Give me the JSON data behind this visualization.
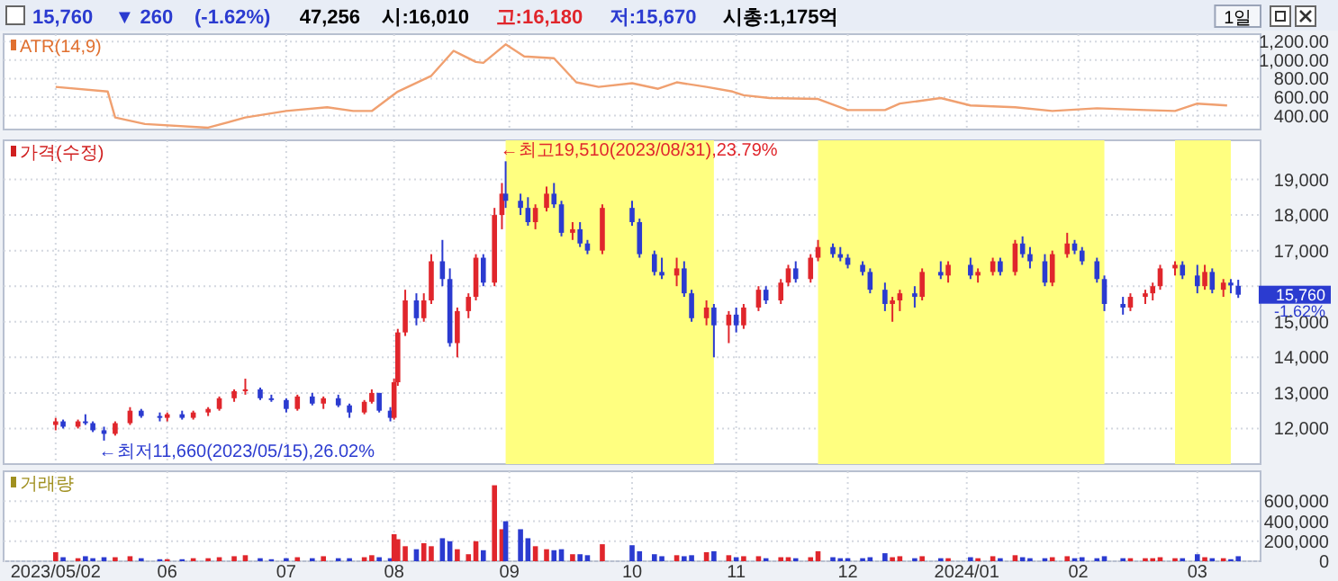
{
  "chart_data": [
    {
      "type": "other",
      "annotations": [
        "15,760",
        "▼ 260",
        "(-1.62%)",
        "47,256",
        "시:16,010",
        "고:16,180",
        "저:15,670",
        "시총:1,175억",
        "1일"
      ],
      "colors": [
        "#2b3bd0",
        "#2b3bd0",
        "#2b3bd0",
        "#000000",
        "#000000",
        "#e0262c",
        "#2b3bd0",
        "#000000",
        "#000000"
      ]
    },
    {
      "type": "line",
      "title": "ATR(14,9)",
      "xlim": [
        "2023-04-18",
        "2024-03-21"
      ],
      "xticks": [
        {
          "value": "2023-05-02",
          "label": null
        },
        {
          "value": "2023-06-01",
          "label": null
        },
        {
          "value": "2023-07-03",
          "label": null
        },
        {
          "value": "2023-08-01",
          "label": null
        },
        {
          "value": "2023-09-01",
          "label": null
        },
        {
          "value": "2023-10-04",
          "label": null
        },
        {
          "value": "2023-11-01",
          "label": null
        },
        {
          "value": "2023-12-01",
          "label": null
        },
        {
          "value": "2024-01-02",
          "label": null
        },
        {
          "value": "2024-02-01",
          "label": null
        },
        {
          "value": "2024-03-04",
          "label": null
        }
      ],
      "ylim": [
        250,
        1280
      ],
      "yticks": [
        {
          "value": 400,
          "label": "400.00"
        },
        {
          "value": 600,
          "label": "600.00"
        },
        {
          "value": 800,
          "label": "800.00"
        },
        {
          "value": 1000,
          "label": "1,000.00"
        },
        {
          "value": 1200,
          "label": "1,200.00"
        }
      ],
      "tick_labels": "y",
      "grid": true,
      "marker": "none",
      "line_style": "solid",
      "series": [
        {
          "color": "#f0a070",
          "x": [
            "2023-05-02",
            "2023-05-16",
            "2023-05-18",
            "2023-05-26",
            "2023-06-12",
            "2023-06-22",
            "2023-07-03",
            "2023-07-14",
            "2023-07-21",
            "2023-07-26",
            "2023-08-02",
            "2023-08-11",
            "2023-08-17",
            "2023-08-23",
            "2023-08-25",
            "2023-08-31",
            "2023-09-05",
            "2023-09-13",
            "2023-09-19",
            "2023-09-25",
            "2023-10-04",
            "2023-10-11",
            "2023-10-16",
            "2023-10-24",
            "2023-10-31",
            "2023-11-03",
            "2023-11-10",
            "2023-11-23",
            "2023-12-01",
            "2023-12-11",
            "2023-12-15",
            "2023-12-26",
            "2024-01-03",
            "2024-01-15",
            "2024-01-25",
            "2024-02-06",
            "2024-02-19",
            "2024-02-27",
            "2024-03-04",
            "2024-03-12"
          ],
          "values": [
            710,
            660,
            380,
            310,
            270,
            380,
            450,
            490,
            450,
            450,
            660,
            830,
            1100,
            980,
            970,
            1170,
            1040,
            1020,
            760,
            710,
            750,
            690,
            760,
            710,
            660,
            620,
            590,
            580,
            460,
            460,
            530,
            590,
            510,
            490,
            450,
            480,
            460,
            450,
            530,
            510
          ]
        }
      ]
    },
    {
      "type": "candlestick",
      "title": "가격(수정)",
      "xlim": [
        "2023-04-18",
        "2024-03-21"
      ],
      "xticks": [
        {
          "value": "2023-05-02",
          "label": null
        },
        {
          "value": "2023-06-01",
          "label": null
        },
        {
          "value": "2023-07-03",
          "label": null
        },
        {
          "value": "2023-08-01",
          "label": null
        },
        {
          "value": "2023-09-01",
          "label": null
        },
        {
          "value": "2023-10-04",
          "label": null
        },
        {
          "value": "2023-11-01",
          "label": null
        },
        {
          "value": "2023-12-01",
          "label": null
        },
        {
          "value": "2024-01-02",
          "label": null
        },
        {
          "value": "2024-02-01",
          "label": null
        },
        {
          "value": "2024-03-04",
          "label": null
        }
      ],
      "ylim": [
        11000,
        20100
      ],
      "yticks": [
        {
          "value": 12000,
          "label": "12,000"
        },
        {
          "value": 13000,
          "label": "13,000"
        },
        {
          "value": 14000,
          "label": "14,000"
        },
        {
          "value": 15000,
          "label": "15,000"
        },
        {
          "value": 16000,
          "label": null
        },
        {
          "value": 17000,
          "label": "17,000"
        },
        {
          "value": 18000,
          "label": "18,000"
        },
        {
          "value": 19000,
          "label": "19,000"
        }
      ],
      "tick_labels": "y",
      "grid": true,
      "x": [
        "2023-05-02",
        "2023-05-04",
        "2023-05-08",
        "2023-05-10",
        "2023-05-12",
        "2023-05-15",
        "2023-05-18",
        "2023-05-22",
        "2023-05-25",
        "2023-05-30",
        "2023-06-01",
        "2023-06-05",
        "2023-06-08",
        "2023-06-12",
        "2023-06-15",
        "2023-06-19",
        "2023-06-22",
        "2023-06-26",
        "2023-06-29",
        "2023-07-03",
        "2023-07-06",
        "2023-07-10",
        "2023-07-13",
        "2023-07-17",
        "2023-07-20",
        "2023-07-24",
        "2023-07-26",
        "2023-07-28",
        "2023-07-31",
        "2023-08-01",
        "2023-08-02",
        "2023-08-04",
        "2023-08-07",
        "2023-08-09",
        "2023-08-11",
        "2023-08-14",
        "2023-08-16",
        "2023-08-18",
        "2023-08-21",
        "2023-08-23",
        "2023-08-25",
        "2023-08-28",
        "2023-08-30",
        "2023-08-31",
        "2023-09-04",
        "2023-09-06",
        "2023-09-08",
        "2023-09-11",
        "2023-09-13",
        "2023-09-15",
        "2023-09-18",
        "2023-09-20",
        "2023-09-22",
        "2023-09-26",
        "2023-10-04",
        "2023-10-06",
        "2023-10-10",
        "2023-10-12",
        "2023-10-16",
        "2023-10-18",
        "2023-10-20",
        "2023-10-24",
        "2023-10-26",
        "2023-10-30",
        "2023-11-01",
        "2023-11-03",
        "2023-11-07",
        "2023-11-09",
        "2023-11-13",
        "2023-11-15",
        "2023-11-17",
        "2023-11-21",
        "2023-11-23",
        "2023-11-27",
        "2023-11-29",
        "2023-12-01",
        "2023-12-05",
        "2023-12-07",
        "2023-12-11",
        "2023-12-13",
        "2023-12-15",
        "2023-12-19",
        "2023-12-21",
        "2023-12-26",
        "2023-12-28",
        "2024-01-03",
        "2024-01-05",
        "2024-01-09",
        "2024-01-11",
        "2024-01-15",
        "2024-01-17",
        "2024-01-19",
        "2024-01-23",
        "2024-01-25",
        "2024-01-29",
        "2024-01-31",
        "2024-02-02",
        "2024-02-06",
        "2024-02-08",
        "2024-02-13",
        "2024-02-15",
        "2024-02-19",
        "2024-02-21",
        "2024-02-23",
        "2024-02-27",
        "2024-02-29",
        "2024-03-04",
        "2024-03-06",
        "2024-03-08",
        "2024-03-11",
        "2024-03-13",
        "2024-03-15"
      ],
      "ohlc": [
        [
          12100,
          12300,
          11950,
          12200
        ],
        [
          12200,
          12250,
          12000,
          12050
        ],
        [
          12050,
          12250,
          12000,
          12200
        ],
        [
          12200,
          12400,
          12100,
          12150
        ],
        [
          12150,
          12200,
          11900,
          11950
        ],
        [
          11950,
          12050,
          11660,
          11850
        ],
        [
          11850,
          12200,
          11800,
          12150
        ],
        [
          12150,
          12600,
          12100,
          12500
        ],
        [
          12500,
          12550,
          12300,
          12350
        ],
        [
          12350,
          12450,
          12200,
          12300
        ],
        [
          12300,
          12450,
          12200,
          12400
        ],
        [
          12400,
          12500,
          12250,
          12300
        ],
        [
          12300,
          12500,
          12250,
          12450
        ],
        [
          12450,
          12600,
          12350,
          12550
        ],
        [
          12550,
          12900,
          12500,
          12850
        ],
        [
          12850,
          13100,
          12750,
          13050
        ],
        [
          13050,
          13400,
          12950,
          13100
        ],
        [
          13100,
          13150,
          12800,
          12850
        ],
        [
          12850,
          12950,
          12750,
          12800
        ],
        [
          12800,
          12850,
          12450,
          12550
        ],
        [
          12550,
          12950,
          12500,
          12900
        ],
        [
          12900,
          13000,
          12650,
          12700
        ],
        [
          12700,
          12900,
          12550,
          12850
        ],
        [
          12850,
          12950,
          12600,
          12650
        ],
        [
          12650,
          12700,
          12300,
          12450
        ],
        [
          12450,
          12800,
          12400,
          12750
        ],
        [
          12750,
          13100,
          12700,
          13000
        ],
        [
          13000,
          13000,
          12450,
          12500
        ],
        [
          12500,
          12600,
          12200,
          12300
        ],
        [
          12300,
          13400,
          12250,
          13300
        ],
        [
          13300,
          14800,
          13200,
          14700
        ],
        [
          14700,
          15900,
          14600,
          15600
        ],
        [
          15600,
          15800,
          14900,
          15100
        ],
        [
          15100,
          15800,
          15000,
          15600
        ],
        [
          15600,
          16900,
          15500,
          16700
        ],
        [
          16700,
          17300,
          16000,
          16200
        ],
        [
          16200,
          16500,
          14300,
          14400
        ],
        [
          14400,
          15400,
          14000,
          15300
        ],
        [
          15300,
          15800,
          15100,
          15700
        ],
        [
          15700,
          16900,
          15600,
          16800
        ],
        [
          16800,
          16900,
          16000,
          16100
        ],
        [
          16100,
          18200,
          16000,
          18000
        ],
        [
          18000,
          18900,
          17600,
          18600
        ],
        [
          18600,
          19510,
          18200,
          18400
        ],
        [
          18400,
          18600,
          18000,
          18200
        ],
        [
          18200,
          18500,
          17700,
          17800
        ],
        [
          17800,
          18300,
          17600,
          18200
        ],
        [
          18200,
          18800,
          18100,
          18600
        ],
        [
          18600,
          18900,
          18200,
          18300
        ],
        [
          18300,
          18400,
          17400,
          17500
        ],
        [
          17500,
          17800,
          17300,
          17600
        ],
        [
          17600,
          17800,
          17100,
          17200
        ],
        [
          17200,
          17300,
          16900,
          17000
        ],
        [
          17000,
          18300,
          16900,
          18200
        ],
        [
          18200,
          18400,
          17700,
          17800
        ],
        [
          17800,
          17900,
          16800,
          16900
        ],
        [
          16900,
          17000,
          16300,
          16400
        ],
        [
          16400,
          16800,
          16200,
          16300
        ],
        [
          16300,
          16800,
          16000,
          16500
        ],
        [
          16500,
          16700,
          15700,
          15800
        ],
        [
          15800,
          15900,
          15000,
          15100
        ],
        [
          15100,
          15600,
          14900,
          15400
        ],
        [
          15400,
          15500,
          14000,
          14900
        ],
        [
          14900,
          15300,
          14400,
          15200
        ],
        [
          15200,
          15400,
          14700,
          14900
        ],
        [
          14900,
          15500,
          14800,
          15400
        ],
        [
          15400,
          16000,
          15300,
          15900
        ],
        [
          15900,
          16000,
          15500,
          15600
        ],
        [
          15600,
          16200,
          15500,
          16100
        ],
        [
          16100,
          16600,
          16000,
          16500
        ],
        [
          16500,
          16700,
          16100,
          16200
        ],
        [
          16200,
          16900,
          16100,
          16800
        ],
        [
          16800,
          17300,
          16700,
          17100
        ],
        [
          17100,
          17200,
          16800,
          16900
        ],
        [
          16900,
          17100,
          16700,
          16800
        ],
        [
          16800,
          16900,
          16500,
          16600
        ],
        [
          16600,
          16700,
          16300,
          16400
        ],
        [
          16400,
          16500,
          15800,
          15900
        ],
        [
          15900,
          16100,
          15300,
          15500
        ],
        [
          15500,
          15700,
          15000,
          15600
        ],
        [
          15600,
          15900,
          15300,
          15800
        ],
        [
          15800,
          16000,
          15400,
          15700
        ],
        [
          15700,
          16500,
          15600,
          16400
        ],
        [
          16400,
          16700,
          16200,
          16300
        ],
        [
          16300,
          16700,
          16100,
          16600
        ],
        [
          16600,
          16800,
          16200,
          16300
        ],
        [
          16300,
          16500,
          16100,
          16400
        ],
        [
          16400,
          16800,
          16300,
          16700
        ],
        [
          16700,
          16800,
          16300,
          16400
        ],
        [
          16400,
          17300,
          16300,
          17200
        ],
        [
          17200,
          17400,
          16800,
          16900
        ],
        [
          16900,
          17100,
          16500,
          16700
        ],
        [
          16700,
          16900,
          16000,
          16100
        ],
        [
          16100,
          17000,
          16000,
          16900
        ],
        [
          16900,
          17500,
          16800,
          17200
        ],
        [
          17200,
          17300,
          16900,
          17000
        ],
        [
          17000,
          17100,
          16600,
          16700
        ],
        [
          16700,
          16800,
          16100,
          16200
        ],
        [
          16200,
          16300,
          15300,
          15500
        ],
        [
          15500,
          15700,
          15200,
          15400
        ],
        [
          15400,
          15800,
          15300,
          15700
        ],
        [
          15700,
          15900,
          15500,
          15800
        ],
        [
          15800,
          16100,
          15600,
          16000
        ],
        [
          16000,
          16600,
          15900,
          16500
        ],
        [
          16500,
          16700,
          16300,
          16600
        ],
        [
          16600,
          16700,
          16200,
          16300
        ],
        [
          16300,
          16600,
          15800,
          16000
        ],
        [
          16000,
          16600,
          15900,
          16400
        ],
        [
          16400,
          16500,
          15800,
          15900
        ],
        [
          15900,
          16200,
          15700,
          16100
        ],
        [
          16100,
          16200,
          15800,
          16020
        ],
        [
          16010,
          16180,
          15670,
          15760
        ]
      ],
      "colors": [
        "#e0262c",
        "#2b3bd0",
        "#e0262c",
        "#2b3bd0",
        "#2b3bd0",
        "#2b3bd0",
        "#e0262c",
        "#e0262c",
        "#2b3bd0",
        "#2b3bd0",
        "#e0262c",
        "#2b3bd0",
        "#e0262c",
        "#e0262c",
        "#e0262c",
        "#e0262c",
        "#e0262c",
        "#2b3bd0",
        "#2b3bd0",
        "#2b3bd0",
        "#e0262c",
        "#2b3bd0",
        "#e0262c",
        "#2b3bd0",
        "#2b3bd0",
        "#e0262c",
        "#e0262c",
        "#2b3bd0",
        "#2b3bd0",
        "#e0262c",
        "#e0262c",
        "#e0262c",
        "#2b3bd0",
        "#e0262c",
        "#e0262c",
        "#2b3bd0",
        "#2b3bd0",
        "#e0262c",
        "#e0262c",
        "#e0262c",
        "#2b3bd0",
        "#e0262c",
        "#e0262c",
        "#2b3bd0",
        "#2b3bd0",
        "#2b3bd0",
        "#e0262c",
        "#e0262c",
        "#2b3bd0",
        "#2b3bd0",
        "#e0262c",
        "#2b3bd0",
        "#2b3bd0",
        "#e0262c",
        "#2b3bd0",
        "#2b3bd0",
        "#2b3bd0",
        "#2b3bd0",
        "#e0262c",
        "#2b3bd0",
        "#2b3bd0",
        "#e0262c",
        "#2b3bd0",
        "#e0262c",
        "#2b3bd0",
        "#e0262c",
        "#e0262c",
        "#2b3bd0",
        "#e0262c",
        "#e0262c",
        "#2b3bd0",
        "#e0262c",
        "#e0262c",
        "#2b3bd0",
        "#2b3bd0",
        "#2b3bd0",
        "#2b3bd0",
        "#2b3bd0",
        "#2b3bd0",
        "#e0262c",
        "#e0262c",
        "#2b3bd0",
        "#e0262c",
        "#2b3bd0",
        "#e0262c",
        "#2b3bd0",
        "#e0262c",
        "#e0262c",
        "#2b3bd0",
        "#e0262c",
        "#2b3bd0",
        "#2b3bd0",
        "#2b3bd0",
        "#e0262c",
        "#e0262c",
        "#2b3bd0",
        "#2b3bd0",
        "#2b3bd0",
        "#2b3bd0",
        "#2b3bd0",
        "#e0262c",
        "#e0262c",
        "#e0262c",
        "#e0262c",
        "#e0262c",
        "#2b3bd0",
        "#2b3bd0",
        "#e0262c",
        "#2b3bd0",
        "#e0262c",
        "#2b3bd0",
        "#2b3bd0"
      ],
      "bands": [
        {
          "axis": "x",
          "from": "2023-08-31",
          "to": "2023-10-26",
          "color": "#ffff80"
        },
        {
          "axis": "x",
          "from": "2023-11-23",
          "to": "2024-02-08",
          "color": "#ffff80"
        },
        {
          "axis": "x",
          "from": "2024-02-27",
          "to": "2024-03-13",
          "color": "#ffff80"
        }
      ],
      "annotations": [
        {
          "text": "←최고19,510(2023/08/31),23.79%",
          "x": "2023-08-31",
          "y": 19510
        },
        {
          "text": "←최저11,660(2023/05/15),26.02%",
          "x": "2023-05-15",
          "y": 11660
        },
        "15,760",
        "-1.62%"
      ]
    },
    {
      "type": "bar",
      "title": "거래량",
      "xlim": [
        "2023-04-18",
        "2024-03-21"
      ],
      "xticks": [
        {
          "value": "2023-05-02",
          "label": "2023/05/02"
        },
        {
          "value": "2023-06-01",
          "label": "06"
        },
        {
          "value": "2023-07-03",
          "label": "07"
        },
        {
          "value": "2023-08-01",
          "label": "08"
        },
        {
          "value": "2023-09-01",
          "label": "09"
        },
        {
          "value": "2023-10-04",
          "label": "10"
        },
        {
          "value": "2023-11-01",
          "label": "11"
        },
        {
          "value": "2023-12-01",
          "label": "12"
        },
        {
          "value": "2024-01-02",
          "label": "2024/01"
        },
        {
          "value": "2024-02-01",
          "label": "02"
        },
        {
          "value": "2024-03-04",
          "label": "03"
        }
      ],
      "ylim": [
        0,
        900000
      ],
      "yticks": [
        0,
        {
          "value": 200000,
          "label": "200,000"
        },
        {
          "value": 400000,
          "label": "400,000"
        },
        {
          "value": 600000,
          "label": "600,000"
        }
      ],
      "grid": true,
      "x": [
        "2023-05-02",
        "2023-05-04",
        "2023-05-08",
        "2023-05-10",
        "2023-05-12",
        "2023-05-15",
        "2023-05-18",
        "2023-05-22",
        "2023-05-25",
        "2023-05-30",
        "2023-06-01",
        "2023-06-05",
        "2023-06-08",
        "2023-06-12",
        "2023-06-15",
        "2023-06-19",
        "2023-06-22",
        "2023-06-26",
        "2023-06-29",
        "2023-07-03",
        "2023-07-06",
        "2023-07-10",
        "2023-07-13",
        "2023-07-17",
        "2023-07-20",
        "2023-07-24",
        "2023-07-26",
        "2023-07-28",
        "2023-07-31",
        "2023-08-01",
        "2023-08-02",
        "2023-08-04",
        "2023-08-07",
        "2023-08-09",
        "2023-08-11",
        "2023-08-14",
        "2023-08-16",
        "2023-08-18",
        "2023-08-21",
        "2023-08-23",
        "2023-08-25",
        "2023-08-28",
        "2023-08-30",
        "2023-08-31",
        "2023-09-04",
        "2023-09-06",
        "2023-09-08",
        "2023-09-11",
        "2023-09-13",
        "2023-09-15",
        "2023-09-18",
        "2023-09-20",
        "2023-09-22",
        "2023-09-26",
        "2023-10-04",
        "2023-10-06",
        "2023-10-10",
        "2023-10-12",
        "2023-10-16",
        "2023-10-18",
        "2023-10-20",
        "2023-10-24",
        "2023-10-26",
        "2023-10-30",
        "2023-11-01",
        "2023-11-03",
        "2023-11-07",
        "2023-11-09",
        "2023-11-13",
        "2023-11-15",
        "2023-11-17",
        "2023-11-21",
        "2023-11-23",
        "2023-11-27",
        "2023-11-29",
        "2023-12-01",
        "2023-12-05",
        "2023-12-07",
        "2023-12-11",
        "2023-12-13",
        "2023-12-15",
        "2023-12-19",
        "2023-12-21",
        "2023-12-26",
        "2023-12-28",
        "2024-01-03",
        "2024-01-05",
        "2024-01-09",
        "2024-01-11",
        "2024-01-15",
        "2024-01-17",
        "2024-01-19",
        "2024-01-23",
        "2024-01-25",
        "2024-01-29",
        "2024-01-31",
        "2024-02-02",
        "2024-02-06",
        "2024-02-08",
        "2024-02-13",
        "2024-02-15",
        "2024-02-19",
        "2024-02-21",
        "2024-02-23",
        "2024-02-27",
        "2024-02-29",
        "2024-03-04",
        "2024-03-06",
        "2024-03-08",
        "2024-03-11",
        "2024-03-13",
        "2024-03-15"
      ],
      "values": [
        90000,
        40000,
        30000,
        50000,
        30000,
        40000,
        40000,
        50000,
        30000,
        20000,
        20000,
        20000,
        30000,
        30000,
        40000,
        50000,
        60000,
        30000,
        20000,
        30000,
        40000,
        30000,
        50000,
        30000,
        30000,
        40000,
        60000,
        40000,
        30000,
        270000,
        220000,
        150000,
        120000,
        180000,
        150000,
        230000,
        200000,
        120000,
        70000,
        200000,
        110000,
        760000,
        320000,
        400000,
        320000,
        230000,
        150000,
        120000,
        110000,
        120000,
        70000,
        70000,
        60000,
        170000,
        160000,
        100000,
        70000,
        50000,
        60000,
        50000,
        60000,
        90000,
        100000,
        60000,
        40000,
        50000,
        50000,
        30000,
        40000,
        40000,
        30000,
        40000,
        100000,
        40000,
        30000,
        30000,
        30000,
        40000,
        80000,
        40000,
        50000,
        30000,
        50000,
        30000,
        30000,
        40000,
        30000,
        50000,
        30000,
        60000,
        40000,
        30000,
        30000,
        40000,
        50000,
        30000,
        40000,
        30000,
        50000,
        30000,
        30000,
        30000,
        30000,
        40000,
        30000,
        30000,
        70000,
        40000,
        30000,
        30000,
        20000,
        50000
      ],
      "colors": [
        "#e0262c",
        "#2b3bd0",
        "#e0262c",
        "#2b3bd0",
        "#2b3bd0",
        "#2b3bd0",
        "#e0262c",
        "#e0262c",
        "#2b3bd0",
        "#2b3bd0",
        "#e0262c",
        "#2b3bd0",
        "#e0262c",
        "#e0262c",
        "#e0262c",
        "#e0262c",
        "#e0262c",
        "#2b3bd0",
        "#2b3bd0",
        "#2b3bd0",
        "#e0262c",
        "#2b3bd0",
        "#e0262c",
        "#2b3bd0",
        "#2b3bd0",
        "#e0262c",
        "#e0262c",
        "#2b3bd0",
        "#2b3bd0",
        "#e0262c",
        "#e0262c",
        "#e0262c",
        "#2b3bd0",
        "#e0262c",
        "#e0262c",
        "#2b3bd0",
        "#2b3bd0",
        "#e0262c",
        "#e0262c",
        "#e0262c",
        "#2b3bd0",
        "#e0262c",
        "#e0262c",
        "#2b3bd0",
        "#2b3bd0",
        "#2b3bd0",
        "#e0262c",
        "#e0262c",
        "#2b3bd0",
        "#2b3bd0",
        "#e0262c",
        "#2b3bd0",
        "#2b3bd0",
        "#e0262c",
        "#2b3bd0",
        "#2b3bd0",
        "#2b3bd0",
        "#2b3bd0",
        "#e0262c",
        "#2b3bd0",
        "#2b3bd0",
        "#e0262c",
        "#2b3bd0",
        "#e0262c",
        "#2b3bd0",
        "#e0262c",
        "#e0262c",
        "#2b3bd0",
        "#e0262c",
        "#e0262c",
        "#2b3bd0",
        "#e0262c",
        "#e0262c",
        "#2b3bd0",
        "#2b3bd0",
        "#2b3bd0",
        "#2b3bd0",
        "#2b3bd0",
        "#2b3bd0",
        "#e0262c",
        "#e0262c",
        "#2b3bd0",
        "#e0262c",
        "#2b3bd0",
        "#e0262c",
        "#2b3bd0",
        "#e0262c",
        "#e0262c",
        "#2b3bd0",
        "#e0262c",
        "#2b3bd0",
        "#2b3bd0",
        "#2b3bd0",
        "#e0262c",
        "#e0262c",
        "#2b3bd0",
        "#2b3bd0",
        "#2b3bd0",
        "#2b3bd0",
        "#2b3bd0",
        "#e0262c",
        "#e0262c",
        "#e0262c",
        "#e0262c",
        "#e0262c",
        "#2b3bd0",
        "#2b3bd0",
        "#e0262c",
        "#2b3bd0",
        "#e0262c",
        "#2b3bd0",
        "#2b3bd0"
      ]
    }
  ]
}
